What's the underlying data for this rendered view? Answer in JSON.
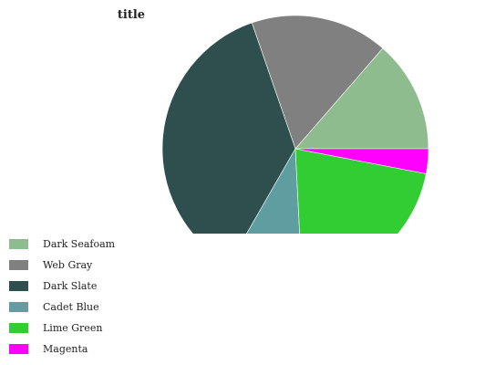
{
  "chart_data": {
    "type": "pie",
    "title": "title",
    "legend_position": "bottom-left",
    "slices": [
      {
        "label": "Dark Seafoam",
        "value": 13.6,
        "color": "#8fbc8f"
      },
      {
        "label": "Web Gray",
        "value": 16.7,
        "color": "#808080"
      },
      {
        "label": "Dark Slate",
        "value": 36.4,
        "color": "#2f4f4f"
      },
      {
        "label": "Cadet Blue",
        "value": 9.1,
        "color": "#5f9ea0"
      },
      {
        "label": "Lime Green",
        "value": 21.2,
        "color": "#32cd32"
      },
      {
        "label": "Magenta",
        "value": 3.0,
        "color": "#ff00ff"
      }
    ]
  }
}
